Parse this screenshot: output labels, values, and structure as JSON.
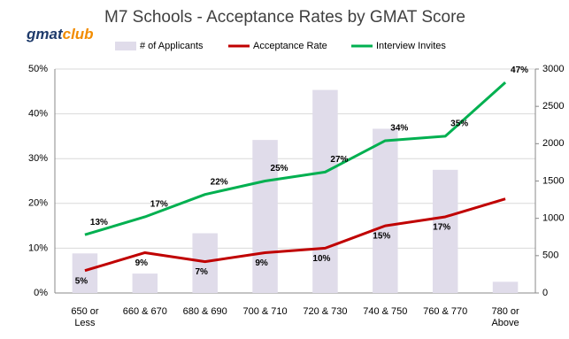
{
  "logo": {
    "left": "gmat",
    "right": "club"
  },
  "chart_data": {
    "type": "combo",
    "title": "M7 Schools - Acceptance Rates by GMAT Score",
    "categories": [
      "650 or Less",
      "660 & 670",
      "680 & 690",
      "700 & 710",
      "720 & 730",
      "740 & 750",
      "760 & 770",
      "780 or Above"
    ],
    "series": [
      {
        "name": "# of Applicants",
        "type": "bar",
        "axis": "y2",
        "color": "#e0dcea",
        "values": [
          530,
          260,
          800,
          2050,
          2720,
          2200,
          1650,
          150
        ]
      },
      {
        "name": "Acceptance Rate",
        "type": "line",
        "color": "#c00000",
        "values": [
          5,
          9,
          7,
          9,
          10,
          15,
          17,
          21
        ],
        "value_labels": [
          "5%",
          "9%",
          "7%",
          "9%",
          "10%",
          "15%",
          "17%",
          null
        ]
      },
      {
        "name": "Interview Invites",
        "type": "line",
        "color": "#00b050",
        "values": [
          13,
          17,
          22,
          25,
          27,
          34,
          35,
          47
        ],
        "value_labels": [
          "13%",
          "17%",
          "22%",
          "25%",
          "27%",
          "34%",
          "35%",
          "47%"
        ]
      }
    ],
    "ylim": [
      0,
      50
    ],
    "yticks": [
      {
        "value": 0,
        "label": "0%"
      },
      {
        "value": 10,
        "label": "10%"
      },
      {
        "value": 20,
        "label": "20%"
      },
      {
        "value": 30,
        "label": "30%"
      },
      {
        "value": 40,
        "label": "40%"
      },
      {
        "value": 50,
        "label": "50%"
      }
    ],
    "y2lim": [
      0,
      3000
    ],
    "y2ticks": [
      0,
      500,
      1000,
      1500,
      2000,
      2500,
      3000
    ],
    "grid": true,
    "legend": "top"
  }
}
